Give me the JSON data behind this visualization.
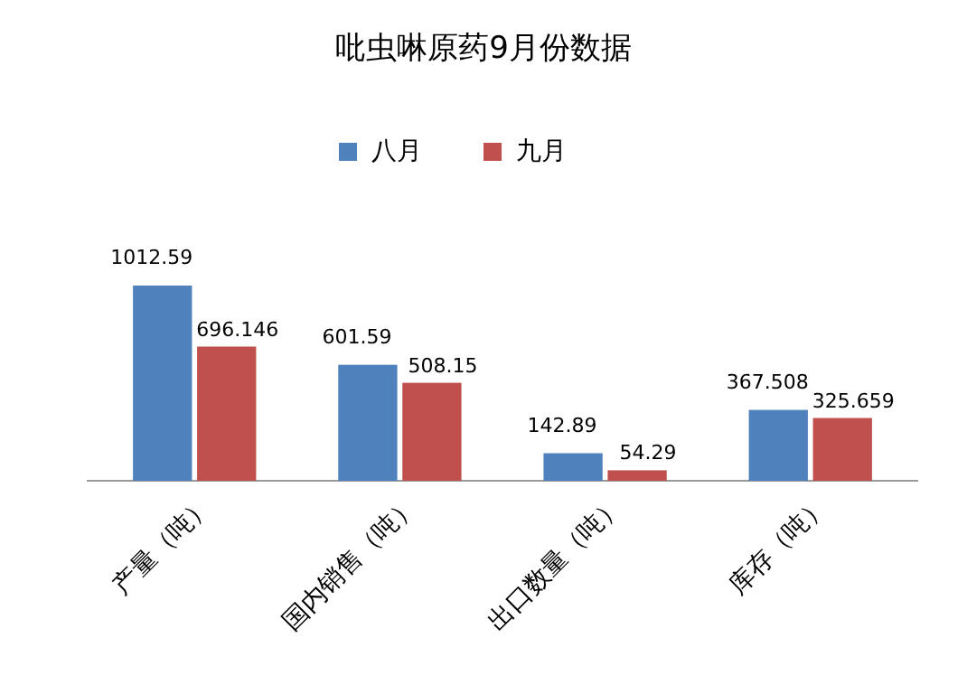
{
  "chart_data": {
    "type": "bar",
    "title": "吡虫啉原药9月份数据",
    "categories": [
      "产量（吨）",
      "国内销售（吨）",
      "出口数量（吨）",
      "库存（吨）"
    ],
    "series": [
      {
        "name": "八月",
        "color": "#4f81bd",
        "values": [
          1012.59,
          601.59,
          142.89,
          367.508
        ]
      },
      {
        "name": "九月",
        "color": "#c0504d",
        "values": [
          696.146,
          508.15,
          54.29,
          325.659
        ]
      }
    ],
    "data_labels": true,
    "legend": "top"
  }
}
